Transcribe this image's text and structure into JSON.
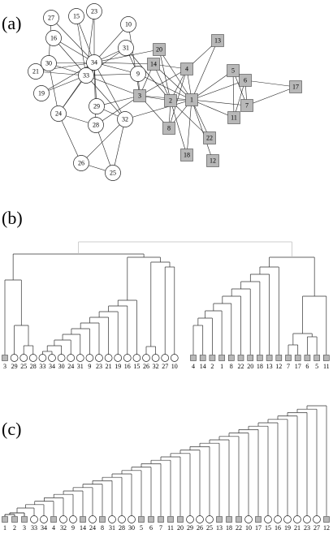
{
  "panels": [
    {
      "label": "(a)",
      "nodes": [
        {
          "label": "1",
          "shape": "square"
        },
        {
          "label": "2",
          "shape": "square"
        },
        {
          "label": "3",
          "shape": "square"
        },
        {
          "label": "4",
          "shape": "square"
        },
        {
          "label": "5",
          "shape": "square"
        },
        {
          "label": "6",
          "shape": "square"
        },
        {
          "label": "7",
          "shape": "square"
        },
        {
          "label": "8",
          "shape": "square"
        },
        {
          "label": "9",
          "shape": "circle"
        },
        {
          "label": "10",
          "shape": "circle"
        },
        {
          "label": "11",
          "shape": "square"
        },
        {
          "label": "12",
          "shape": "square"
        },
        {
          "label": "13",
          "shape": "square"
        },
        {
          "label": "14",
          "shape": "square"
        },
        {
          "label": "15",
          "shape": "circle"
        },
        {
          "label": "16",
          "shape": "circle"
        },
        {
          "label": "17",
          "shape": "square"
        },
        {
          "label": "18",
          "shape": "square"
        },
        {
          "label": "19",
          "shape": "circle"
        },
        {
          "label": "20",
          "shape": "square"
        },
        {
          "label": "21",
          "shape": "circle"
        },
        {
          "label": "22",
          "shape": "square"
        },
        {
          "label": "23",
          "shape": "circle"
        },
        {
          "label": "24",
          "shape": "circle"
        },
        {
          "label": "25",
          "shape": "circle"
        },
        {
          "label": "26",
          "shape": "circle"
        },
        {
          "label": "27",
          "shape": "circle"
        },
        {
          "label": "28",
          "shape": "circle"
        },
        {
          "label": "29",
          "shape": "circle"
        },
        {
          "label": "30",
          "shape": "circle"
        },
        {
          "label": "31",
          "shape": "circle"
        },
        {
          "label": "32",
          "shape": "circle"
        },
        {
          "label": "33",
          "shape": "circle"
        },
        {
          "label": "34",
          "shape": "circle"
        }
      ]
    },
    {
      "label": "(b)",
      "leaves": [
        "3",
        "29",
        "25",
        "28",
        "33",
        "34",
        "30",
        "24",
        "31",
        "9",
        "23",
        "21",
        "19",
        "16",
        "15",
        "26",
        "32",
        "27",
        "10",
        "4",
        "14",
        "2",
        "1",
        "8",
        "22",
        "20",
        "18",
        "13",
        "12",
        "7",
        "17",
        "6",
        "5",
        "11"
      ]
    },
    {
      "label": "(c)",
      "leaves": [
        "1",
        "2",
        "3",
        "33",
        "34",
        "4",
        "32",
        "9",
        "14",
        "24",
        "8",
        "31",
        "28",
        "30",
        "5",
        "6",
        "7",
        "11",
        "20",
        "29",
        "26",
        "25",
        "13",
        "18",
        "22",
        "10",
        "17",
        "15",
        "16",
        "19",
        "21",
        "23",
        "27",
        "12"
      ]
    }
  ]
}
